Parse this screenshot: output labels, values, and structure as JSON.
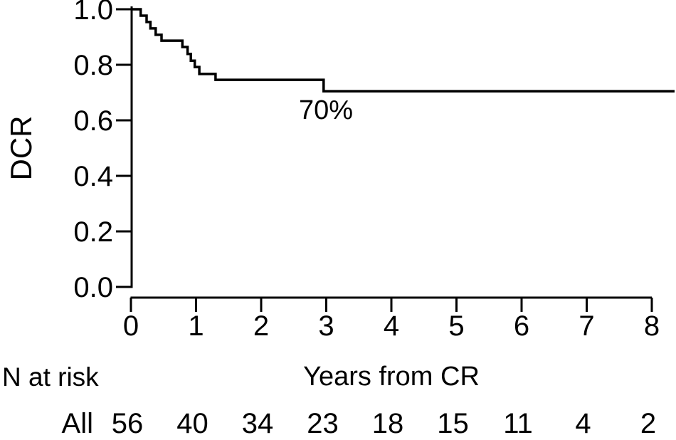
{
  "figure": {
    "background": "#ffffff",
    "line_color": "#000000",
    "text_color": "#000000"
  },
  "axes": {
    "y_label": "DCR",
    "x_label": "Years from CR",
    "y_tick_labels": [
      "1.0",
      "0.8",
      "0.6",
      "0.4",
      "0.2",
      "0.0"
    ],
    "x_tick_labels": [
      "0",
      "1",
      "2",
      "3",
      "4",
      "5",
      "6",
      "7",
      "8"
    ]
  },
  "annotation": {
    "text": "70%"
  },
  "risk_table": {
    "header": "N at risk",
    "group": "All",
    "counts": [
      "56",
      "40",
      "34",
      "23",
      "18",
      "15",
      "11",
      "4",
      "2"
    ]
  },
  "chart_data": {
    "type": "line",
    "subtype": "kaplan-meier-step",
    "title": "",
    "xlabel": "Years from CR",
    "ylabel": "DCR",
    "xlim": [
      0,
      8
    ],
    "ylim": [
      0.0,
      1.0
    ],
    "x_ticks": [
      0,
      1,
      2,
      3,
      4,
      5,
      6,
      7,
      8
    ],
    "y_ticks": [
      1.0,
      0.8,
      0.6,
      0.4,
      0.2,
      0.0
    ],
    "grid": false,
    "legend": false,
    "annotation": {
      "text": "70%",
      "x": 3.0,
      "y": 0.64
    },
    "series": [
      {
        "name": "All",
        "steps": [
          [
            0.0,
            1.0
          ],
          [
            0.15,
            0.977
          ],
          [
            0.24,
            0.954
          ],
          [
            0.3,
            0.931
          ],
          [
            0.38,
            0.908
          ],
          [
            0.47,
            0.887
          ],
          [
            0.79,
            0.864
          ],
          [
            0.87,
            0.839
          ],
          [
            0.92,
            0.815
          ],
          [
            0.98,
            0.792
          ],
          [
            1.05,
            0.767
          ],
          [
            1.3,
            0.746
          ],
          [
            2.96,
            0.705
          ]
        ],
        "end_time": 8.35
      }
    ],
    "n_at_risk": {
      "label": "N at risk",
      "group": "All",
      "times": [
        0,
        1,
        2,
        3,
        4,
        5,
        6,
        7,
        8
      ],
      "counts": [
        56,
        40,
        34,
        23,
        18,
        15,
        11,
        4,
        2
      ]
    }
  }
}
